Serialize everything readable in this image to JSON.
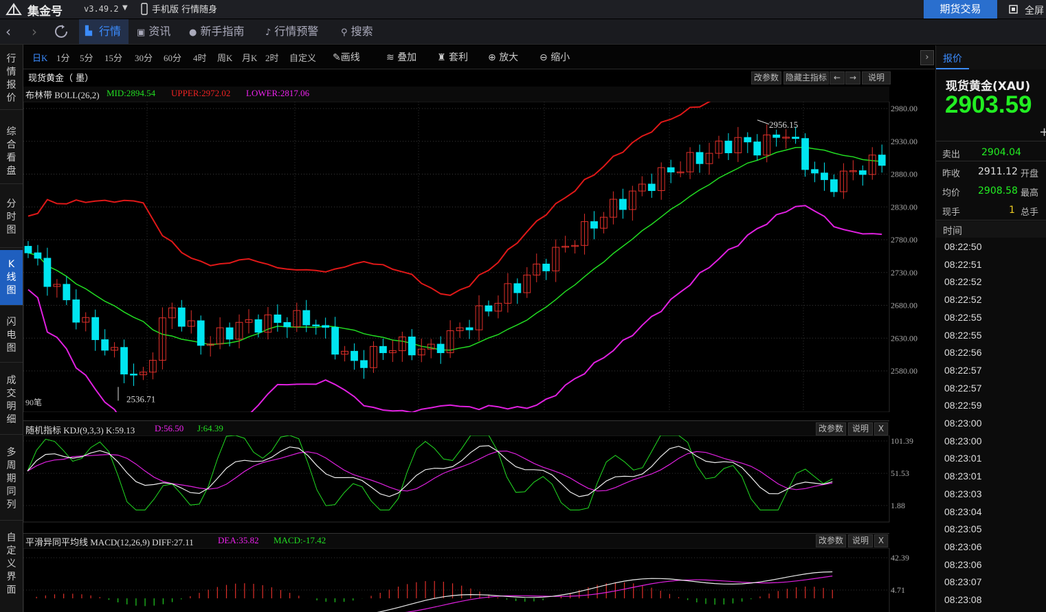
{
  "titlebar": {
    "app_name": "集金号",
    "version": "v3.49.2",
    "mobile": "手机版 行情随身",
    "futures_button": "期货交易",
    "fullscreen": "全屏"
  },
  "nav": {
    "quotes": "行情",
    "news": "资讯",
    "guide": "新手指南",
    "alert": "行情预警",
    "search": "搜索"
  },
  "left_tabs": [
    "行情报价",
    "综合看盘",
    "分时图",
    "K线图",
    "闪电图",
    "成交明细",
    "多周期同列",
    "自定义界面"
  ],
  "periods": [
    "日K",
    "1分",
    "5分",
    "15分",
    "30分",
    "60分",
    "4时",
    "周K",
    "月K",
    "2时",
    "自定义"
  ],
  "tools": {
    "draw": "画线",
    "overlay": "叠加",
    "arbitrage": "套利",
    "zoom_in": "放大",
    "zoom_out": "缩小"
  },
  "main_chart": {
    "title": "现货黄金（ 墨）",
    "indicator_name": "布林带 BOLL(26,2)",
    "mid": "MID:2894.54",
    "upper": "UPPER:2972.02",
    "lower": "LOWER:2817.06",
    "buttons": [
      "改参数",
      "隐藏主指标",
      "←",
      "→",
      "说明"
    ],
    "y_ticks": [
      "2980.00",
      "2930.00",
      "2880.00",
      "2830.00",
      "2780.00",
      "2730.00",
      "2680.00",
      "2630.00",
      "2580.00"
    ],
    "high_label": "2956.15",
    "low_label": "2536.71",
    "bars_label": "90笔"
  },
  "kdj_panel": {
    "indicator_name": "随机指标 KDJ(9,3,3) K:59.13",
    "d": "D:56.50",
    "j": "J:64.39",
    "buttons": [
      "改参数",
      "说明",
      "X"
    ],
    "y_ticks": [
      "101.39",
      "51.53",
      "1.88"
    ]
  },
  "macd_panel": {
    "indicator_name": "平滑异同平均线 MACD(12,26,9) DIFF:27.11",
    "dea": "DEA:35.82",
    "macd": "MACD:-17.42",
    "buttons": [
      "改参数",
      "说明",
      "X"
    ],
    "y_ticks": [
      "42.39",
      "4.71"
    ]
  },
  "quote_panel": {
    "tab": "报价",
    "name": "现货黄金(XAU)",
    "price": "2903.59",
    "sell_label": "卖出",
    "sell_value": "2904.04",
    "prev_close_label": "昨收",
    "prev_close_value": "2911.12",
    "open_label": "开盘",
    "avg_label": "均价",
    "avg_value": "2908.58",
    "high_label": "最高",
    "volume_label": "现手",
    "volume_value": "1",
    "total_label": "总手",
    "time_header": "时间",
    "times": [
      "08:22:50",
      "08:22:51",
      "08:22:52",
      "08:22:52",
      "08:22:55",
      "08:22:55",
      "08:22:56",
      "08:22:57",
      "08:22:57",
      "08:22:59",
      "08:23:00",
      "08:23:00",
      "08:23:01",
      "08:23:01",
      "08:23:03",
      "08:23:04",
      "08:23:05",
      "08:23:06",
      "08:23:06",
      "08:23:07",
      "08:23:08"
    ]
  },
  "colors": {
    "up": "#e0302a",
    "down": "#00e5f0",
    "mid": "#22dd22",
    "upper": "#e01818",
    "lower": "#e020e0",
    "accent": "#2a6fce",
    "price": "#22ee22"
  }
}
